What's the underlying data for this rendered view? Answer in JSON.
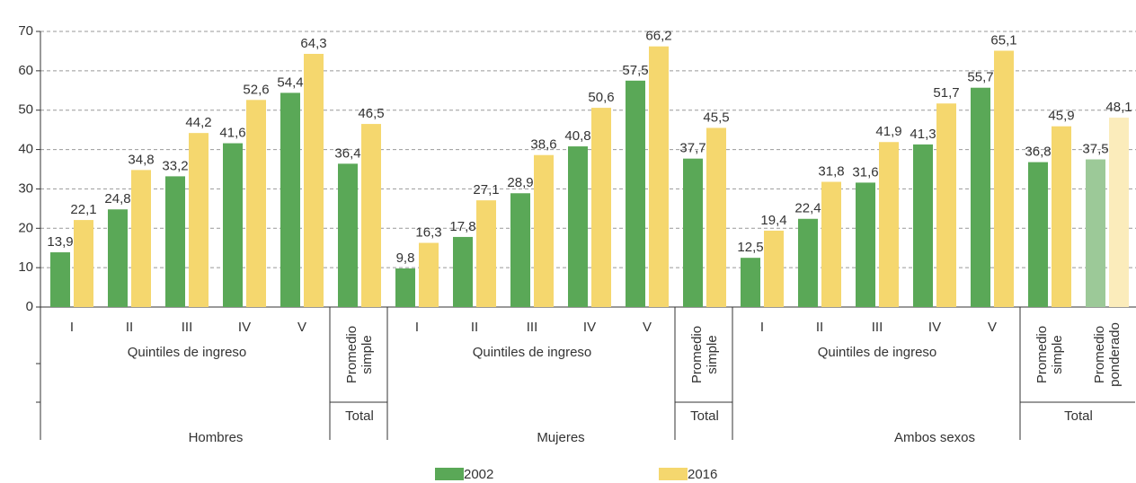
{
  "chart_data": {
    "type": "bar",
    "sections": [
      {
        "name": "Hombres",
        "subgroups": [
          {
            "name": "Quintiles de ingreso",
            "categories": [
              "I",
              "II",
              "III",
              "IV",
              "V"
            ]
          },
          {
            "name": "Total",
            "categories": [
              "Promedio simple"
            ]
          }
        ]
      },
      {
        "name": "Mujeres",
        "subgroups": [
          {
            "name": "Quintiles de ingreso",
            "categories": [
              "I",
              "II",
              "III",
              "IV",
              "V"
            ]
          },
          {
            "name": "Total",
            "categories": [
              "Promedio simple"
            ]
          }
        ]
      },
      {
        "name": "Ambos sexos",
        "subgroups": [
          {
            "name": "Quintiles de ingreso",
            "categories": [
              "I",
              "II",
              "III",
              "IV",
              "V"
            ]
          },
          {
            "name": "Total",
            "categories": [
              "Promedio simple",
              "Promedio ponderado"
            ]
          }
        ]
      }
    ],
    "series": [
      {
        "name": "2002",
        "color": "#5aa857",
        "colors": [
          "#5aa857",
          "#5aa857",
          "#5aa857",
          "#5aa857",
          "#5aa857",
          "#5aa857",
          "#5aa857",
          "#5aa857",
          "#5aa857",
          "#5aa857",
          "#5aa857",
          "#5aa857",
          "#5aa857",
          "#5aa857",
          "#5aa857",
          "#5aa857",
          "#5aa857",
          "#5aa857",
          "#9cc998"
        ],
        "values": [
          13.9,
          24.8,
          33.2,
          41.6,
          54.4,
          36.4,
          9.8,
          17.8,
          28.9,
          40.8,
          57.5,
          37.7,
          12.5,
          22.4,
          31.6,
          41.3,
          55.7,
          36.8,
          37.5
        ],
        "value_labels": [
          "13,9",
          "24,8",
          "33,2",
          "41,6",
          "54,4",
          "36,4",
          "9,8",
          "17,8",
          "28,9",
          "40,8",
          "57,5",
          "37,7",
          "12,5",
          "22,4",
          "31,6",
          "41,3",
          "55,7",
          "36,8",
          "37,5"
        ]
      },
      {
        "name": "2016",
        "color": "#f5d76e",
        "colors": [
          "#f5d76e",
          "#f5d76e",
          "#f5d76e",
          "#f5d76e",
          "#f5d76e",
          "#f5d76e",
          "#f5d76e",
          "#f5d76e",
          "#f5d76e",
          "#f5d76e",
          "#f5d76e",
          "#f5d76e",
          "#f5d76e",
          "#f5d76e",
          "#f5d76e",
          "#f5d76e",
          "#f5d76e",
          "#f5d76e",
          "#fbecbb"
        ],
        "values": [
          22.1,
          34.8,
          44.2,
          52.6,
          64.3,
          46.5,
          16.3,
          27.1,
          38.6,
          50.6,
          66.2,
          45.5,
          19.4,
          31.8,
          41.9,
          51.7,
          65.1,
          45.9,
          48.1
        ],
        "value_labels": [
          "22,1",
          "34,8",
          "44,2",
          "52,6",
          "64,3",
          "46,5",
          "16,3",
          "27,1",
          "38,6",
          "50,6",
          "66,2",
          "45,5",
          "19,4",
          "31,8",
          "41,9",
          "51,7",
          "65,1",
          "45,9",
          "48,1"
        ]
      }
    ],
    "ylim": [
      0,
      70
    ],
    "yticks": [
      0,
      10,
      20,
      30,
      40,
      50,
      60,
      70
    ],
    "grid": true
  }
}
